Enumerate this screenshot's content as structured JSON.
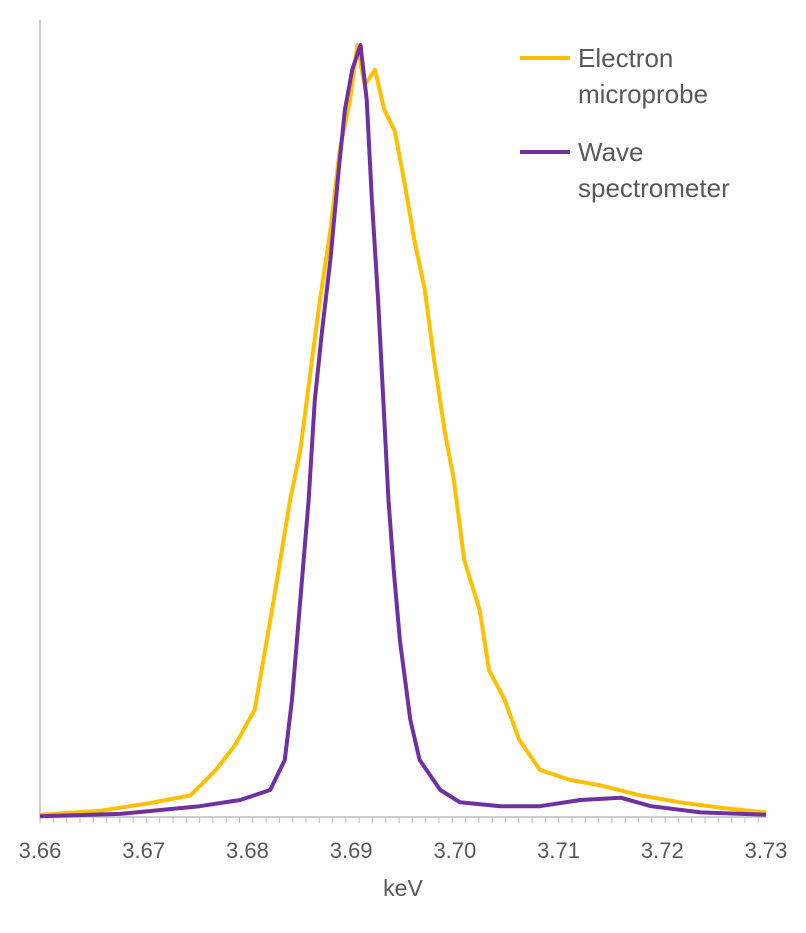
{
  "chart_data": {
    "type": "line",
    "title": "",
    "xlabel": "keV",
    "ylabel": "",
    "xlim": [
      3.66,
      3.73
    ],
    "ylim": [
      0,
      100
    ],
    "x_ticks": [
      "3.66",
      "3.67",
      "3.68",
      "3.69",
      "3.70",
      "3.71",
      "3.72",
      "3.73"
    ],
    "y_ticks_shown": false,
    "grid": false,
    "legend_position": "top-right",
    "series": [
      {
        "name_lines": [
          "Electron",
          "microprobe"
        ],
        "color": "#FFC000",
        "x": [
          3.66,
          3.6658,
          3.6706,
          3.6745,
          3.6769,
          3.6788,
          3.6807,
          3.6817,
          3.6827,
          3.6841,
          3.6851,
          3.6861,
          3.687,
          3.688,
          3.6889,
          3.6899,
          3.6906,
          3.6913,
          3.6923,
          3.6932,
          3.6942,
          3.6951,
          3.6961,
          3.6971,
          3.698,
          3.699,
          3.6999,
          3.7009,
          3.7024,
          3.7033,
          3.7048,
          3.7062,
          3.7082,
          3.7111,
          3.714,
          3.7179,
          3.7217,
          3.7256,
          3.73
        ],
        "y": [
          0.3,
          0.8,
          1.8,
          2.8,
          6,
          9.3,
          13.9,
          21.6,
          29.4,
          41,
          47.5,
          57.9,
          67,
          76,
          86.4,
          92.9,
          100,
          94.8,
          96.8,
          91.6,
          88.9,
          82.5,
          74.7,
          68.3,
          59.2,
          50.1,
          43.7,
          33.3,
          26.8,
          19,
          15.2,
          10,
          6.1,
          4.8,
          4.1,
          2.8,
          1.9,
          1.2,
          0.6
        ]
      },
      {
        "name_lines": [
          "Wave",
          "spectrometer"
        ],
        "color": "#7030A0",
        "x": [
          3.66,
          3.6677,
          3.6754,
          3.6793,
          3.6822,
          3.6836,
          3.6843,
          3.6851,
          3.6859,
          3.6865,
          3.6872,
          3.688,
          3.6888,
          3.6894,
          3.6901,
          3.6909,
          3.6915,
          3.692,
          3.6926,
          3.6931,
          3.6936,
          3.6941,
          3.6947,
          3.6957,
          3.6966,
          3.6986,
          3.7005,
          3.7044,
          3.7082,
          3.7121,
          3.716,
          3.7189,
          3.7237,
          3.73
        ],
        "y": [
          0.1,
          0.4,
          1.4,
          2.2,
          3.5,
          7.4,
          15.2,
          28.1,
          41,
          54,
          63,
          72.2,
          83.8,
          91.6,
          96.8,
          100,
          92.9,
          79.9,
          67,
          54,
          41,
          32,
          22.9,
          12.6,
          7.4,
          3.5,
          1.9,
          1.4,
          1.4,
          2.2,
          2.5,
          1.4,
          0.6,
          0.3
        ]
      }
    ]
  }
}
